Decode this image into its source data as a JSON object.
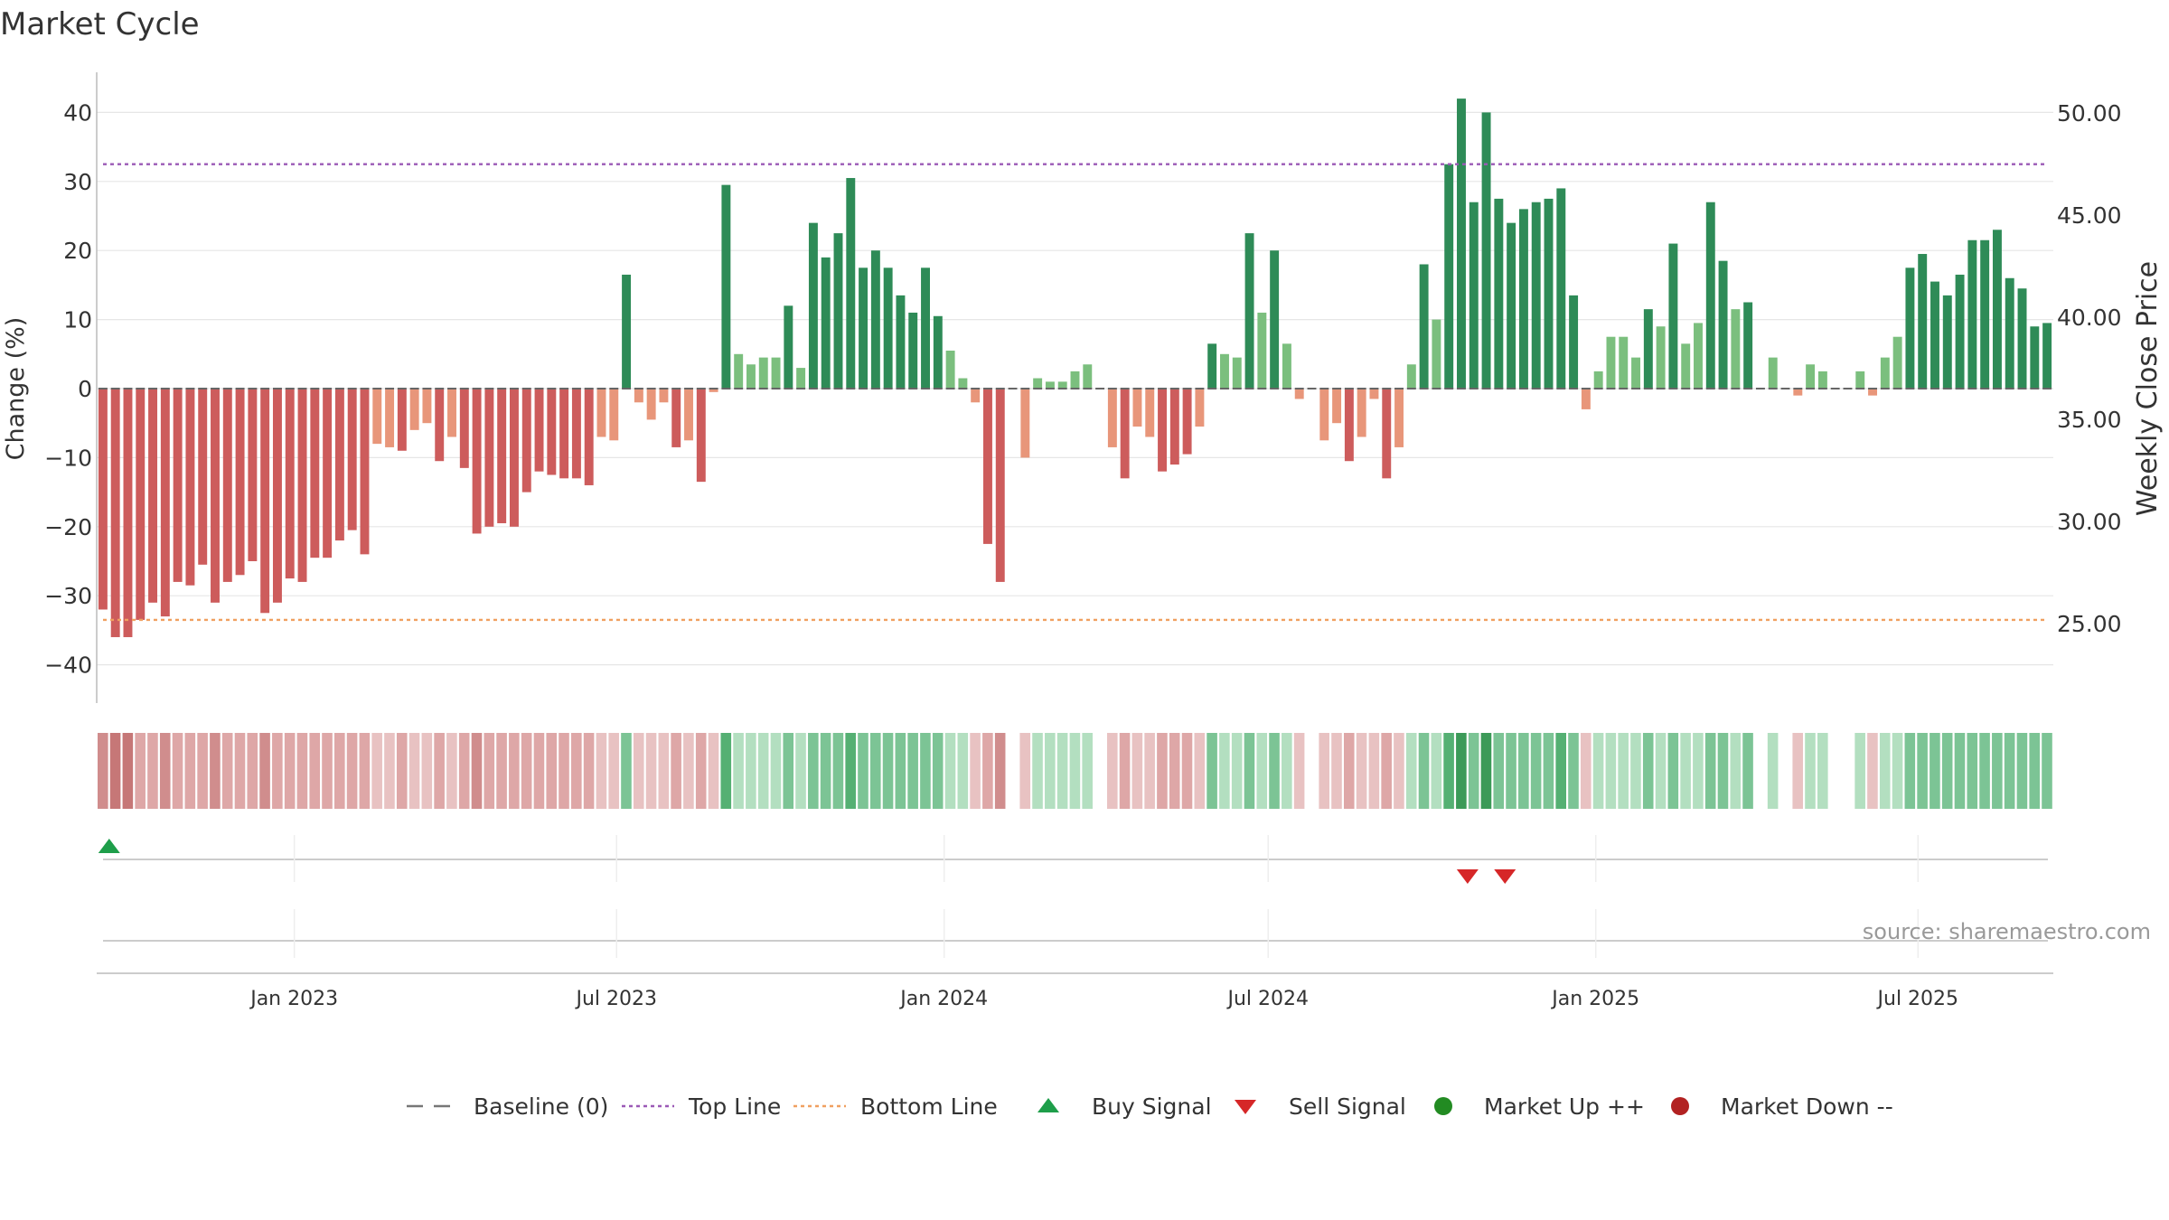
{
  "chart_data": {
    "type": "bar",
    "title": "Market Cycle",
    "ylabel": "Change (%)",
    "y2label": "Weekly Close Price",
    "ylim": [
      -46,
      46
    ],
    "y2lim": [
      22,
      52
    ],
    "yticks": [
      40,
      30,
      20,
      10,
      0,
      -10,
      -20,
      -30,
      -40
    ],
    "yticklabels": [
      "40",
      "30",
      "20",
      "10",
      "0",
      "−10",
      "−20",
      "−30",
      "−40"
    ],
    "y2ticks": [
      50,
      45,
      40,
      35,
      30,
      25
    ],
    "y2ticklabels": [
      "50.00",
      "45.00",
      "40.00",
      "35.00",
      "30.00",
      "25.00"
    ],
    "x_start": "2022-09-12",
    "x_end": "2025-09-15",
    "xticks": [
      {
        "date": "2023-01-01",
        "label": "Jan 2023"
      },
      {
        "date": "2023-07-01",
        "label": "Jul 2023"
      },
      {
        "date": "2024-01-01",
        "label": "Jan 2024"
      },
      {
        "date": "2024-07-01",
        "label": "Jul 2024"
      },
      {
        "date": "2025-01-01",
        "label": "Jan 2025"
      },
      {
        "date": "2025-07-01",
        "label": "Jul 2025"
      }
    ],
    "series": [
      {
        "name": "Change",
        "first_week": "2022-09-12",
        "values": [
          -32,
          -36,
          -36,
          -33.5,
          -31,
          -33,
          -28,
          -28.5,
          -25.5,
          -31,
          -28,
          -27,
          -25,
          -32.5,
          -31,
          -27.5,
          -28,
          -24.5,
          -24.5,
          -22,
          -20.5,
          -24,
          -8,
          -8.5,
          -9,
          -6,
          -5,
          -10.5,
          -7,
          -11.5,
          -21,
          -20,
          -19.5,
          -20,
          -15,
          -12,
          -12.5,
          -13,
          -13,
          -14,
          -7,
          -7.5,
          16.5,
          -2,
          -4.5,
          -2,
          -8.5,
          -7.5,
          -13.5,
          -0.5,
          29.5,
          5,
          3.5,
          4.5,
          4.5,
          12,
          3,
          24,
          19,
          22.5,
          30.5,
          17.5,
          20,
          17.5,
          13.5,
          11,
          17.5,
          10.5,
          5.5,
          1.5,
          -2,
          -22.5,
          -28,
          0,
          -10,
          1.5,
          1,
          1,
          2.5,
          3.5,
          0,
          -8.5,
          -13,
          -5.5,
          -7,
          -12,
          -11,
          -9.5,
          -5.5,
          6.5,
          5,
          4.5,
          22.5,
          11,
          20,
          6.5,
          -1.5,
          0,
          -7.5,
          -5,
          -10.5,
          -7,
          -1.5,
          -13,
          -8.5,
          3.5,
          18,
          10,
          32.5,
          42,
          27,
          40,
          27.5,
          24,
          26,
          27,
          27.5,
          29,
          13.5,
          -3,
          2.5,
          7.5,
          7.5,
          4.5,
          11.5,
          9,
          21,
          6.5,
          9.5,
          27,
          18.5,
          11.5,
          12.5,
          0,
          4.5,
          0,
          -1,
          3.5,
          2.5,
          0,
          0,
          2.5,
          -1,
          4.5,
          7.5,
          17.5,
          19.5,
          15.5,
          13.5,
          16.5,
          21.5,
          21.5,
          23,
          16,
          14.5,
          9,
          9.5
        ],
        "intensity": [
          3,
          4,
          4,
          2,
          2,
          3,
          2,
          2,
          2,
          3,
          2,
          2,
          2,
          3,
          2,
          2,
          2,
          2,
          2,
          2,
          2,
          2,
          1,
          1,
          2,
          1,
          1,
          2,
          1,
          2,
          3,
          2,
          2,
          2,
          2,
          2,
          2,
          2,
          2,
          2,
          1,
          1,
          2,
          1,
          1,
          1,
          2,
          1,
          2,
          1,
          3,
          1,
          1,
          1,
          1,
          2,
          1,
          2,
          2,
          2,
          3,
          2,
          2,
          2,
          2,
          2,
          2,
          2,
          1,
          1,
          1,
          2,
          3,
          0,
          1,
          1,
          1,
          1,
          1,
          1,
          0,
          1,
          2,
          1,
          1,
          2,
          2,
          2,
          1,
          2,
          1,
          1,
          2,
          1,
          2,
          1,
          1,
          0,
          1,
          1,
          2,
          1,
          1,
          2,
          1,
          1,
          2,
          1,
          3,
          4,
          2,
          4,
          2,
          2,
          2,
          2,
          2,
          3,
          2,
          1,
          1,
          1,
          1,
          1,
          2,
          1,
          2,
          1,
          1,
          2,
          2,
          1,
          2,
          1,
          1,
          1,
          1,
          1,
          1,
          1,
          1,
          1,
          1,
          1,
          1,
          2,
          2,
          2,
          2,
          2,
          2,
          2,
          2,
          2,
          2,
          2,
          2
        ]
      }
    ],
    "top_line": 32.5,
    "bottom_line": -33.5,
    "signals": {
      "buy": [
        "2022-09-19"
      ],
      "sell": [
        "2024-10-21",
        "2024-11-11"
      ]
    },
    "legend": {
      "position": "bottom-center",
      "items": [
        {
          "label": "Baseline (0)",
          "marker": "dash",
          "color": "#777777"
        },
        {
          "label": "Top Line",
          "marker": "dotted",
          "color": "#9b59b6"
        },
        {
          "label": "Bottom Line",
          "marker": "dotted",
          "color": "#f0a060"
        },
        {
          "label": "Buy Signal",
          "marker": "triangle-up",
          "color": "#1e9e4a"
        },
        {
          "label": "Sell Signal",
          "marker": "triangle-down",
          "color": "#d62728"
        },
        {
          "label": "Market Up ++",
          "marker": "circle",
          "color": "#228b22"
        },
        {
          "label": "Market Down --",
          "marker": "circle",
          "color": "#b22222"
        }
      ]
    },
    "grid": true,
    "source_note": "source: sharemaestro.com"
  }
}
